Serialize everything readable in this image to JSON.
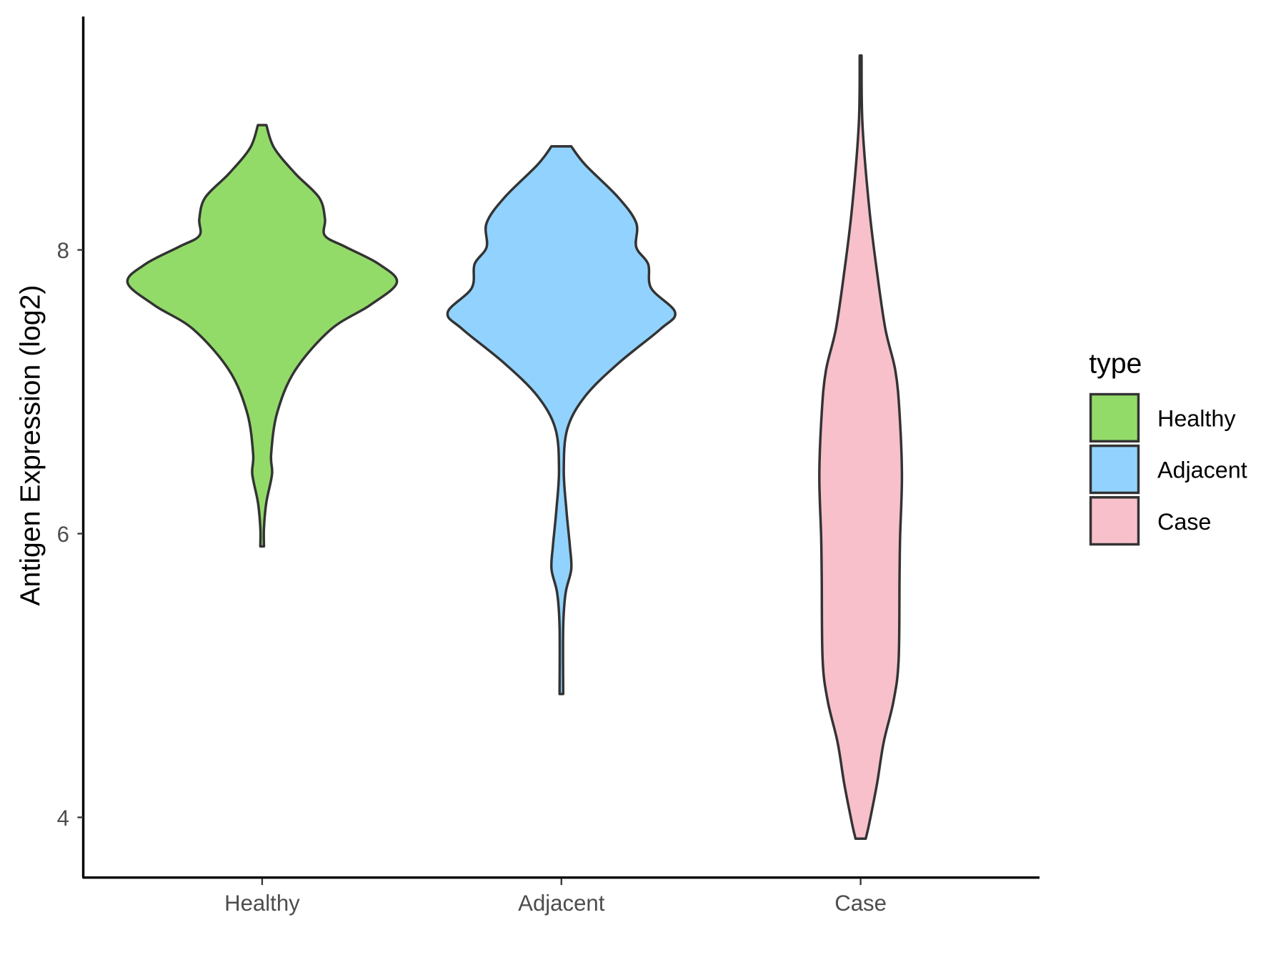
{
  "chart_data": {
    "type": "violin",
    "title": "",
    "xlabel": "",
    "ylabel": "Antigen Expression (log2)",
    "categories": [
      "Healthy",
      "Adjacent",
      "Case"
    ],
    "yticks": [
      4,
      6,
      8
    ],
    "ylim": [
      3.6,
      9.7
    ],
    "grid": false,
    "legend": {
      "title": "type",
      "placement": "right",
      "entries": [
        "Healthy",
        "Adjacent",
        "Case"
      ]
    },
    "colors": {
      "Healthy": "#93DB69",
      "Adjacent": "#91D3FE",
      "Case": "#F7C0CB",
      "outline": "#333333"
    },
    "series": [
      {
        "name": "Healthy",
        "min": 5.91,
        "max": 8.88,
        "density": [
          [
            8.88,
            0.014
          ],
          [
            8.72,
            0.04
          ],
          [
            8.54,
            0.11
          ],
          [
            8.37,
            0.19
          ],
          [
            8.22,
            0.21
          ],
          [
            8.1,
            0.21
          ],
          [
            8.02,
            0.28
          ],
          [
            7.9,
            0.39
          ],
          [
            7.77,
            0.45
          ],
          [
            7.61,
            0.36
          ],
          [
            7.44,
            0.23
          ],
          [
            7.15,
            0.11
          ],
          [
            6.85,
            0.05
          ],
          [
            6.56,
            0.03
          ],
          [
            6.42,
            0.033
          ],
          [
            6.22,
            0.014
          ],
          [
            6.04,
            0.006
          ],
          [
            5.91,
            0.006
          ]
        ]
      },
      {
        "name": "Adjacent",
        "min": 4.87,
        "max": 8.73,
        "density": [
          [
            8.73,
            0.033
          ],
          [
            8.6,
            0.08
          ],
          [
            8.37,
            0.19
          ],
          [
            8.19,
            0.25
          ],
          [
            8.02,
            0.25
          ],
          [
            7.9,
            0.29
          ],
          [
            7.73,
            0.3
          ],
          [
            7.56,
            0.38
          ],
          [
            7.44,
            0.33
          ],
          [
            7.2,
            0.19
          ],
          [
            6.97,
            0.08
          ],
          [
            6.74,
            0.02
          ],
          [
            6.45,
            0.008
          ],
          [
            6.16,
            0.017
          ],
          [
            5.92,
            0.028
          ],
          [
            5.75,
            0.033
          ],
          [
            5.58,
            0.014
          ],
          [
            5.34,
            0.006
          ],
          [
            4.87,
            0.006
          ]
        ]
      },
      {
        "name": "Case",
        "min": 3.85,
        "max": 9.37,
        "density": [
          [
            9.37,
            0.003
          ],
          [
            8.89,
            0.006
          ],
          [
            8.31,
            0.028
          ],
          [
            7.84,
            0.055
          ],
          [
            7.44,
            0.083
          ],
          [
            7.15,
            0.116
          ],
          [
            6.85,
            0.13
          ],
          [
            6.41,
            0.138
          ],
          [
            5.98,
            0.132
          ],
          [
            5.69,
            0.13
          ],
          [
            5.11,
            0.127
          ],
          [
            4.82,
            0.11
          ],
          [
            4.53,
            0.077
          ],
          [
            4.24,
            0.055
          ],
          [
            3.95,
            0.028
          ],
          [
            3.85,
            0.017
          ]
        ]
      }
    ]
  }
}
